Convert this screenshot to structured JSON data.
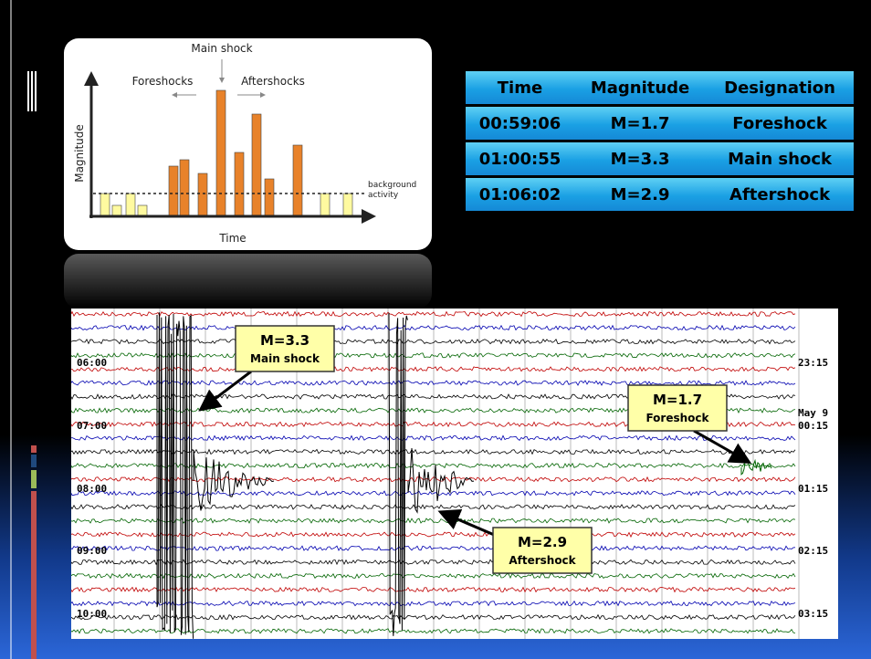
{
  "diagram": {
    "main_shock_label": "Main shock",
    "foreshocks_label": "Foreshocks",
    "aftershocks_label": "Aftershocks",
    "y_axis_label": "Magnitude",
    "x_axis_label": "Time",
    "background_label": "background activity"
  },
  "table": {
    "header": [
      "Time",
      "Magnitude",
      "Designation"
    ],
    "rows": [
      [
        "00:59:06",
        "M=1.7",
        "Foreshock"
      ],
      [
        "01:00:55",
        "M=3.3",
        "Main shock"
      ],
      [
        "01:06:02",
        "M=2.9",
        "Aftershock"
      ]
    ]
  },
  "seismogram": {
    "left_times": [
      "06:00",
      "07:00",
      "08:00",
      "09:00",
      "10:00"
    ],
    "right_times": [
      "23:15",
      "00:15",
      "01:15",
      "02:15",
      "03:15"
    ],
    "date_label": "May 9",
    "callouts": [
      {
        "magnitude": "M=3.3",
        "label": "Main shock"
      },
      {
        "magnitude": "M=1.7",
        "label": "Foreshock"
      },
      {
        "magnitude": "M=2.9",
        "label": "Aftershock"
      }
    ]
  }
}
